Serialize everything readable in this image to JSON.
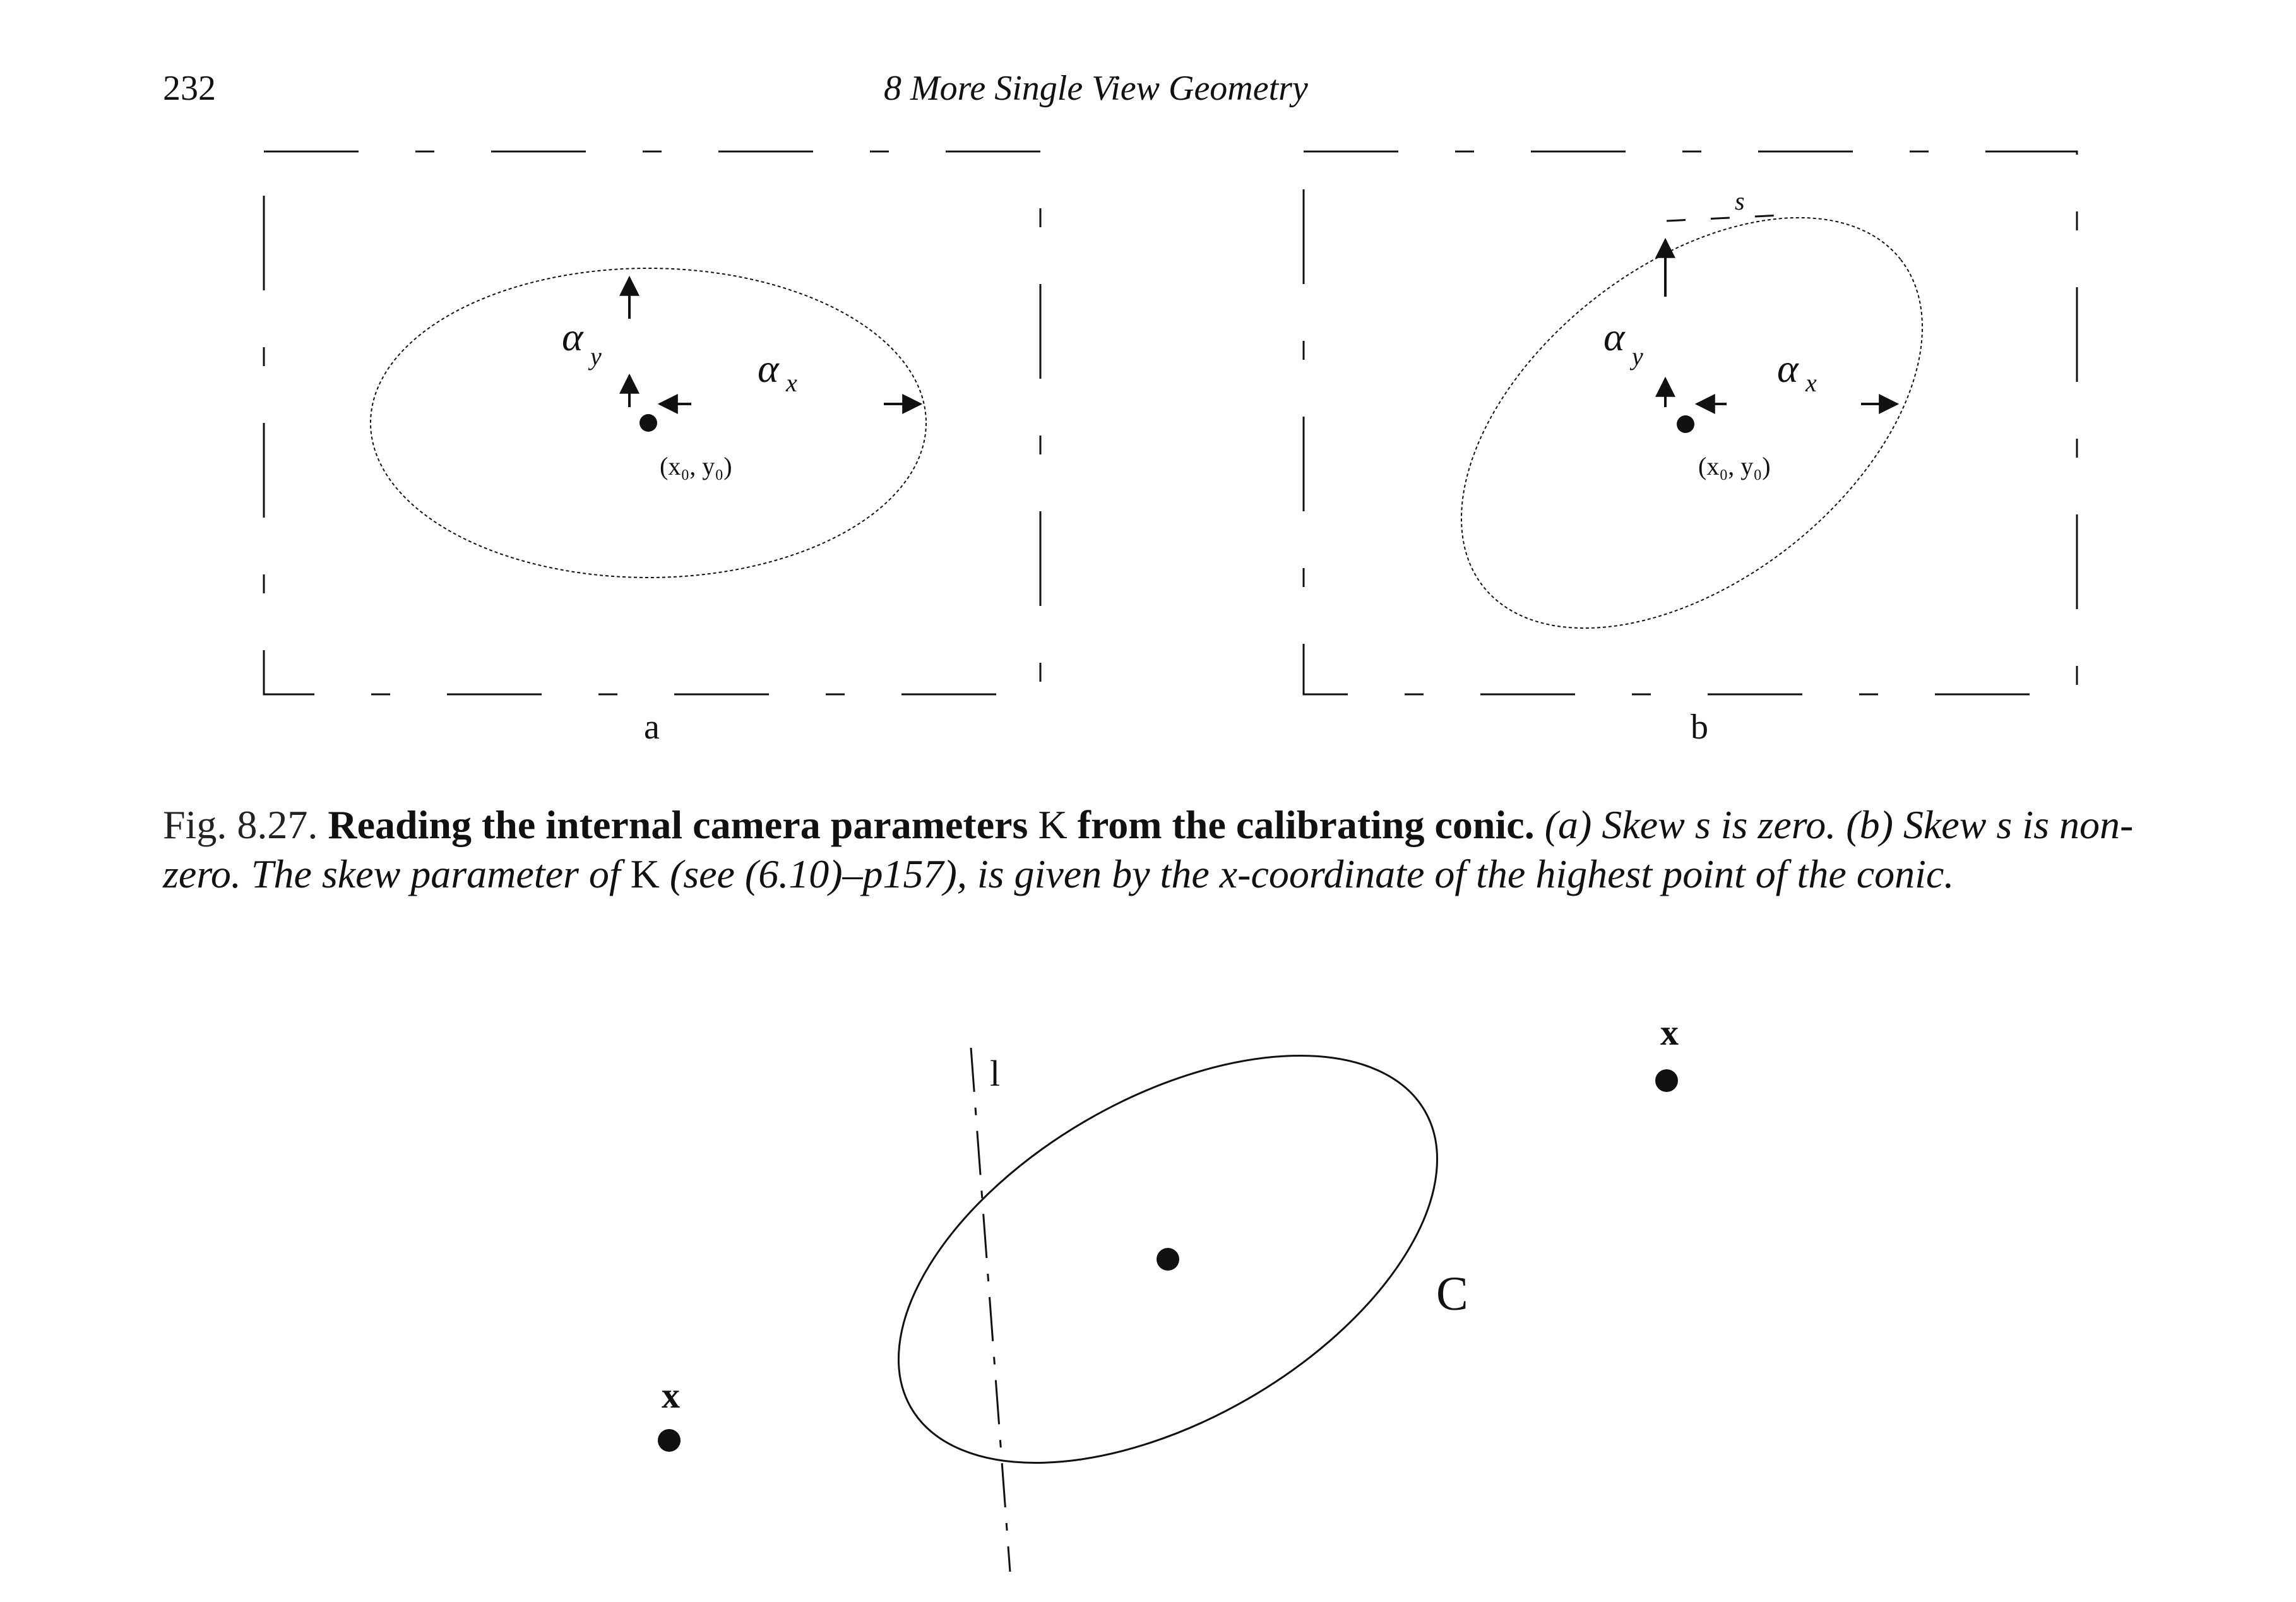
{
  "header": {
    "page_number": "232",
    "running_title": "8  More Single View Geometry"
  },
  "figure_8_27": {
    "panel_a": {
      "label": "a",
      "alpha_y": "α",
      "alpha_y_sub": "y",
      "alpha_x": "α",
      "alpha_x_sub": "x",
      "principal_point": "(x₀, y₀)"
    },
    "panel_b": {
      "label": "b",
      "skew_label": "s",
      "alpha_y": "α",
      "alpha_y_sub": "y",
      "alpha_x": "α",
      "alpha_x_sub": "x",
      "principal_point": "(x₀, y₀)"
    },
    "caption": {
      "fig_label": "Fig. 8.27.",
      "title_a": "Reading the internal camera parameters ",
      "title_K": "K",
      "title_b": " from the calibrating conic.",
      "part_a": " (a) Skew s is zero.",
      "part_b": "(b) Skew s is non-zero. The skew parameter of ",
      "part_K": "K",
      "part_c": " (see (6.10)–p157), is given by the x-coordinate of the highest point of the conic."
    }
  },
  "figure_lower": {
    "line_label": "l",
    "point_label": "x",
    "point_label_2": "x",
    "conic_label": "C"
  }
}
